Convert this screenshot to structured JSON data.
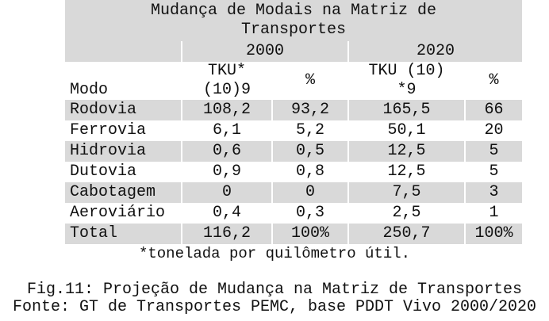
{
  "table": {
    "title": "Mudança de Modais na Matriz de Transportes",
    "years": [
      "2000",
      "2020"
    ],
    "header": [
      [
        "Modo"
      ],
      [
        "TKU*",
        "(10)9"
      ],
      [
        "%"
      ],
      [
        "TKU (10)",
        "*9"
      ],
      [
        "%"
      ]
    ],
    "rows": [
      [
        "Rodovia",
        "108,2",
        "93,2",
        "165,5",
        "66"
      ],
      [
        "Ferrovia",
        "6,1",
        "5,2",
        "50,1",
        "20"
      ],
      [
        "Hidrovia",
        "0,6",
        "0,5",
        "12,5",
        "5"
      ],
      [
        "Dutovia",
        "0,9",
        "0,8",
        "12,5",
        "5"
      ],
      [
        "Cabotagem",
        "0",
        "0",
        "7,5",
        "3"
      ],
      [
        "Aeroviário",
        "0,4",
        "0,3",
        "2,5",
        "1"
      ],
      [
        "Total",
        "116,2",
        "100%",
        "250,7",
        "100%"
      ]
    ],
    "footnote": "*tonelada por quilômetro útil."
  },
  "caption": [
    "Fig.11: Projeção de Mudança na Matriz de Transportes",
    "Fonte: GT de Transportes PEMC, base PDDT Vivo 2000/2020"
  ]
}
